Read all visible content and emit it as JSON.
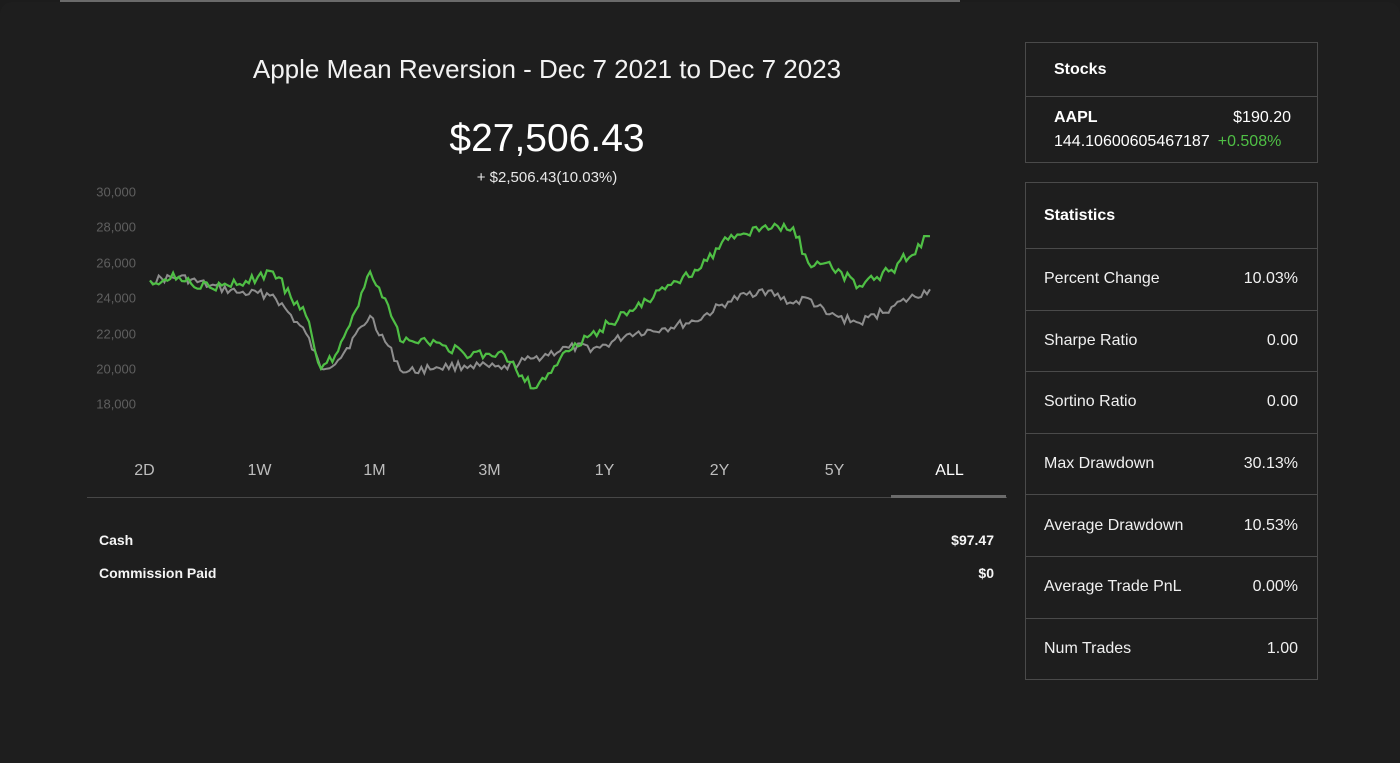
{
  "title": "Apple Mean Reversion - Dec 7 2021 to Dec 7 2023",
  "portfolio_value": "$27,506.43",
  "portfolio_change": "+ $2,506.43(10.03%)",
  "colors": {
    "strategy_line": "#4fbf45",
    "benchmark_line": "#8e8e8e",
    "positive": "#4fbf45"
  },
  "time_ranges": [
    {
      "label": "2D",
      "active": false
    },
    {
      "label": "1W",
      "active": false
    },
    {
      "label": "1M",
      "active": false
    },
    {
      "label": "3M",
      "active": false
    },
    {
      "label": "1Y",
      "active": false
    },
    {
      "label": "2Y",
      "active": false
    },
    {
      "label": "5Y",
      "active": false
    },
    {
      "label": "ALL",
      "active": true
    }
  ],
  "account": {
    "cash_label": "Cash",
    "cash_value": "$97.47",
    "commission_label": "Commission Paid",
    "commission_value": "$0"
  },
  "stocks": {
    "heading": "Stocks",
    "items": [
      {
        "symbol": "AAPL",
        "price": "$190.20",
        "quantity": "144.10600605467187",
        "change": "+0.508%"
      }
    ]
  },
  "statistics": {
    "heading": "Statistics",
    "rows": [
      {
        "label": "Percent Change",
        "value": "10.03%"
      },
      {
        "label": "Sharpe Ratio",
        "value": "0.00"
      },
      {
        "label": "Sortino Ratio",
        "value": "0.00"
      },
      {
        "label": "Max Drawdown",
        "value": "30.13%"
      },
      {
        "label": "Average Drawdown",
        "value": "10.53%"
      },
      {
        "label": "Average Trade PnL",
        "value": "0.00%"
      },
      {
        "label": "Num Trades",
        "value": "1.00"
      }
    ]
  },
  "chart_data": {
    "type": "line",
    "title": "",
    "xlabel": "",
    "ylabel": "",
    "ylim": [
      17000,
      30000
    ],
    "yticks": [
      "30,000",
      "28,000",
      "26,000",
      "24,000",
      "22,000",
      "20,000",
      "18,000"
    ],
    "x": [
      "2021-12-07",
      "2022-01-03",
      "2022-02-01",
      "2022-03-01",
      "2022-04-01",
      "2022-05-02",
      "2022-05-16",
      "2022-06-01",
      "2022-07-01",
      "2022-08-01",
      "2022-09-01",
      "2022-10-03",
      "2022-11-01",
      "2022-12-01",
      "2023-01-03",
      "2023-02-01",
      "2023-03-01",
      "2023-04-03",
      "2023-05-01",
      "2023-06-01",
      "2023-07-03",
      "2023-08-01",
      "2023-08-15",
      "2023-09-01",
      "2023-10-02",
      "2023-11-01",
      "2023-12-07"
    ],
    "series": [
      {
        "values": [
          25000,
          25200,
          24600,
          24800,
          25500,
          23000,
          20000,
          21000,
          25500,
          21500,
          21500,
          20700,
          21000,
          18900,
          21000,
          22200,
          23300,
          24500,
          25600,
          27300,
          28000,
          28000,
          26000,
          26000,
          24700,
          25600,
          27500
        ]
      },
      {
        "values": [
          25000,
          25200,
          24700,
          24300,
          24200,
          22000,
          20000,
          20500,
          23000,
          19800,
          20100,
          20200,
          20000,
          20600,
          21200,
          21200,
          22000,
          22300,
          22700,
          23800,
          24500,
          23700,
          24000,
          23100,
          22600,
          23500,
          24500
        ]
      }
    ]
  }
}
